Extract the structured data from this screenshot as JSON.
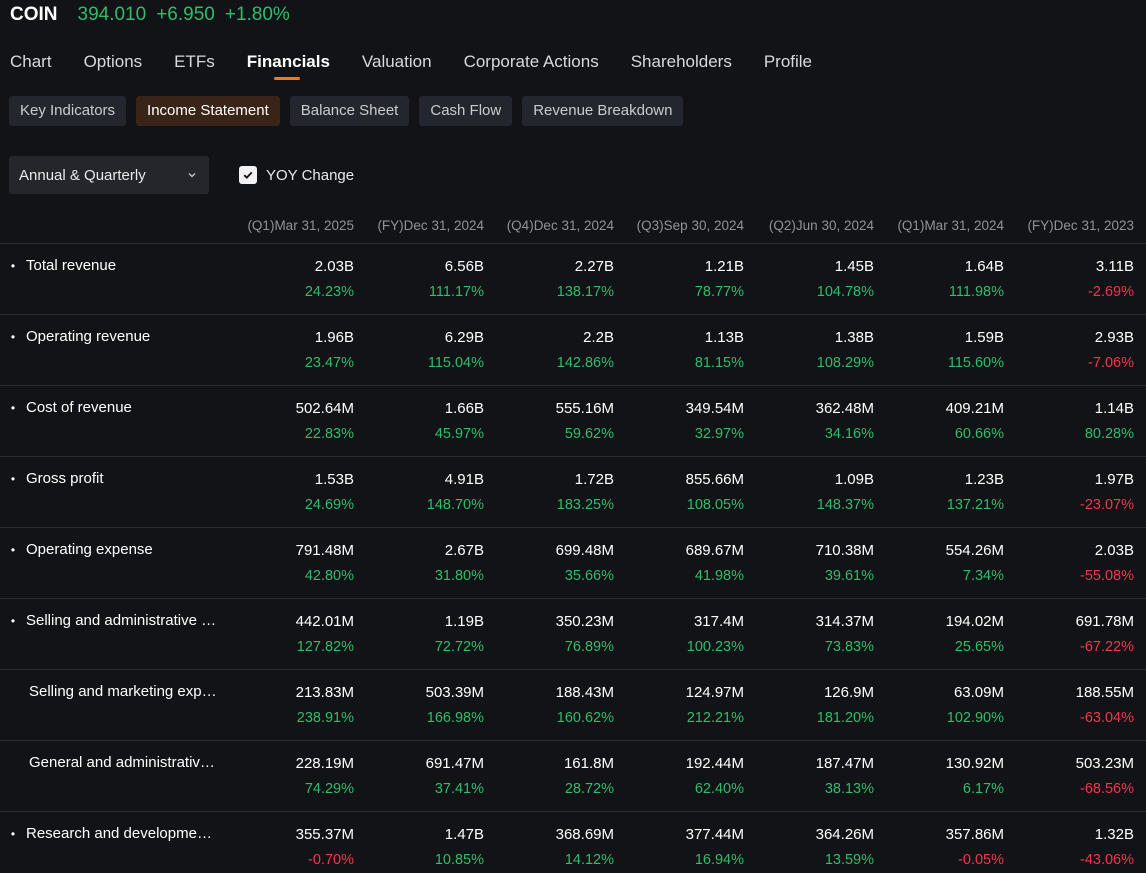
{
  "ticker": {
    "symbol": "COIN",
    "price": "394.010",
    "change": "+6.950",
    "change_pct": "+1.80%"
  },
  "main_tabs": [
    {
      "label": "Chart",
      "active": false
    },
    {
      "label": "Options",
      "active": false
    },
    {
      "label": "ETFs",
      "active": false
    },
    {
      "label": "Financials",
      "active": true
    },
    {
      "label": "Valuation",
      "active": false
    },
    {
      "label": "Corporate Actions",
      "active": false
    },
    {
      "label": "Shareholders",
      "active": false
    },
    {
      "label": "Profile",
      "active": false
    }
  ],
  "sub_tabs": [
    {
      "label": "Key Indicators",
      "active": false
    },
    {
      "label": "Income Statement",
      "active": true
    },
    {
      "label": "Balance Sheet",
      "active": false
    },
    {
      "label": "Cash Flow",
      "active": false
    },
    {
      "label": "Revenue Breakdown",
      "active": false
    }
  ],
  "controls": {
    "period_select": "Annual & Quarterly",
    "yoy_label": "YOY Change",
    "yoy_checked": true
  },
  "colors": {
    "positive": "#2ebd6b",
    "negative": "#f5364a",
    "accent": "#f07a1b"
  },
  "columns": [
    "(Q1)Mar 31, 2025",
    "(FY)Dec 31, 2024",
    "(Q4)Dec 31, 2024",
    "(Q3)Sep 30, 2024",
    "(Q2)Jun 30, 2024",
    "(Q1)Mar 31, 2024",
    "(FY)Dec 31, 2023"
  ],
  "rows": [
    {
      "label": "Total revenue",
      "bullet": true,
      "values": [
        "2.03B",
        "6.56B",
        "2.27B",
        "1.21B",
        "1.45B",
        "1.64B",
        "3.11B"
      ],
      "yoy": [
        "24.23%",
        "111.17%",
        "138.17%",
        "78.77%",
        "104.78%",
        "111.98%",
        "-2.69%"
      ]
    },
    {
      "label": "Operating revenue",
      "bullet": true,
      "values": [
        "1.96B",
        "6.29B",
        "2.2B",
        "1.13B",
        "1.38B",
        "1.59B",
        "2.93B"
      ],
      "yoy": [
        "23.47%",
        "115.04%",
        "142.86%",
        "81.15%",
        "108.29%",
        "115.60%",
        "-7.06%"
      ]
    },
    {
      "label": "Cost of revenue",
      "bullet": true,
      "values": [
        "502.64M",
        "1.66B",
        "555.16M",
        "349.54M",
        "362.48M",
        "409.21M",
        "1.14B"
      ],
      "yoy": [
        "22.83%",
        "45.97%",
        "59.62%",
        "32.97%",
        "34.16%",
        "60.66%",
        "80.28%"
      ]
    },
    {
      "label": "Gross profit",
      "bullet": true,
      "values": [
        "1.53B",
        "4.91B",
        "1.72B",
        "855.66M",
        "1.09B",
        "1.23B",
        "1.97B"
      ],
      "yoy": [
        "24.69%",
        "148.70%",
        "183.25%",
        "108.05%",
        "148.37%",
        "137.21%",
        "-23.07%"
      ]
    },
    {
      "label": "Operating expense",
      "bullet": true,
      "values": [
        "791.48M",
        "2.67B",
        "699.48M",
        "689.67M",
        "710.38M",
        "554.26M",
        "2.03B"
      ],
      "yoy": [
        "42.80%",
        "31.80%",
        "35.66%",
        "41.98%",
        "39.61%",
        "7.34%",
        "-55.08%"
      ]
    },
    {
      "label": "Selling and administrative e…",
      "bullet": true,
      "values": [
        "442.01M",
        "1.19B",
        "350.23M",
        "317.4M",
        "314.37M",
        "194.02M",
        "691.78M"
      ],
      "yoy": [
        "127.82%",
        "72.72%",
        "76.89%",
        "100.23%",
        "73.83%",
        "25.65%",
        "-67.22%"
      ]
    },
    {
      "label": "Selling and marketing expe…",
      "bullet": false,
      "values": [
        "213.83M",
        "503.39M",
        "188.43M",
        "124.97M",
        "126.9M",
        "63.09M",
        "188.55M"
      ],
      "yoy": [
        "238.91%",
        "166.98%",
        "160.62%",
        "212.21%",
        "181.20%",
        "102.90%",
        "-63.04%"
      ]
    },
    {
      "label": "General and administrative …",
      "bullet": false,
      "values": [
        "228.19M",
        "691.47M",
        "161.8M",
        "192.44M",
        "187.47M",
        "130.92M",
        "503.23M"
      ],
      "yoy": [
        "74.29%",
        "37.41%",
        "28.72%",
        "62.40%",
        "38.13%",
        "6.17%",
        "-68.56%"
      ]
    },
    {
      "label": "Research and development …",
      "bullet": true,
      "values": [
        "355.37M",
        "1.47B",
        "368.69M",
        "377.44M",
        "364.26M",
        "357.86M",
        "1.32B"
      ],
      "yoy": [
        "-0.70%",
        "10.85%",
        "14.12%",
        "16.94%",
        "13.59%",
        "-0.05%",
        "-43.06%"
      ]
    }
  ]
}
